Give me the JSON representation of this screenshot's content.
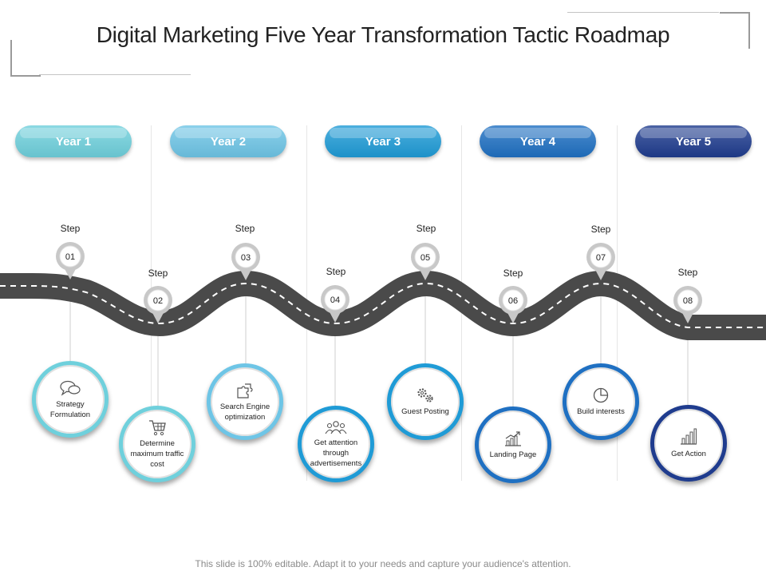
{
  "title": "Digital Marketing Five Year Transformation Tactic Roadmap",
  "years": [
    "Year 1",
    "Year 2",
    "Year 3",
    "Year 4",
    "Year 5"
  ],
  "colors": {
    "year": [
      "#6fd0dc",
      "#6ec5e6",
      "#1f9bd6",
      "#1f70c2",
      "#1f3c8e"
    ],
    "road": "#4a4a4a",
    "pin": "#c8c8c8"
  },
  "steps": [
    {
      "label": "Step",
      "number": "01",
      "text": "Strategy Formulation",
      "icon": "chat-bubbles-icon"
    },
    {
      "label": "Step",
      "number": "02",
      "text": "Determine maximum traffic cost",
      "icon": "shopping-cart-icon"
    },
    {
      "label": "Step",
      "number": "03",
      "text": "Search Engine optimization",
      "icon": "puzzle-icon"
    },
    {
      "label": "Step",
      "number": "04",
      "text": "Get attention through advertisements",
      "icon": "audience-icon"
    },
    {
      "label": "Step",
      "number": "05",
      "text": "Guest Posting",
      "icon": "gears-icon"
    },
    {
      "label": "Step",
      "number": "06",
      "text": "Landing Page",
      "icon": "growth-chart-icon"
    },
    {
      "label": "Step",
      "number": "07",
      "text": "Build interests",
      "icon": "pie-chart-icon"
    },
    {
      "label": "Step",
      "number": "08",
      "text": "Get Action",
      "icon": "bar-chart-icon"
    }
  ],
  "footer": "This slide is 100% editable. Adapt it to your needs and capture your audience's attention."
}
